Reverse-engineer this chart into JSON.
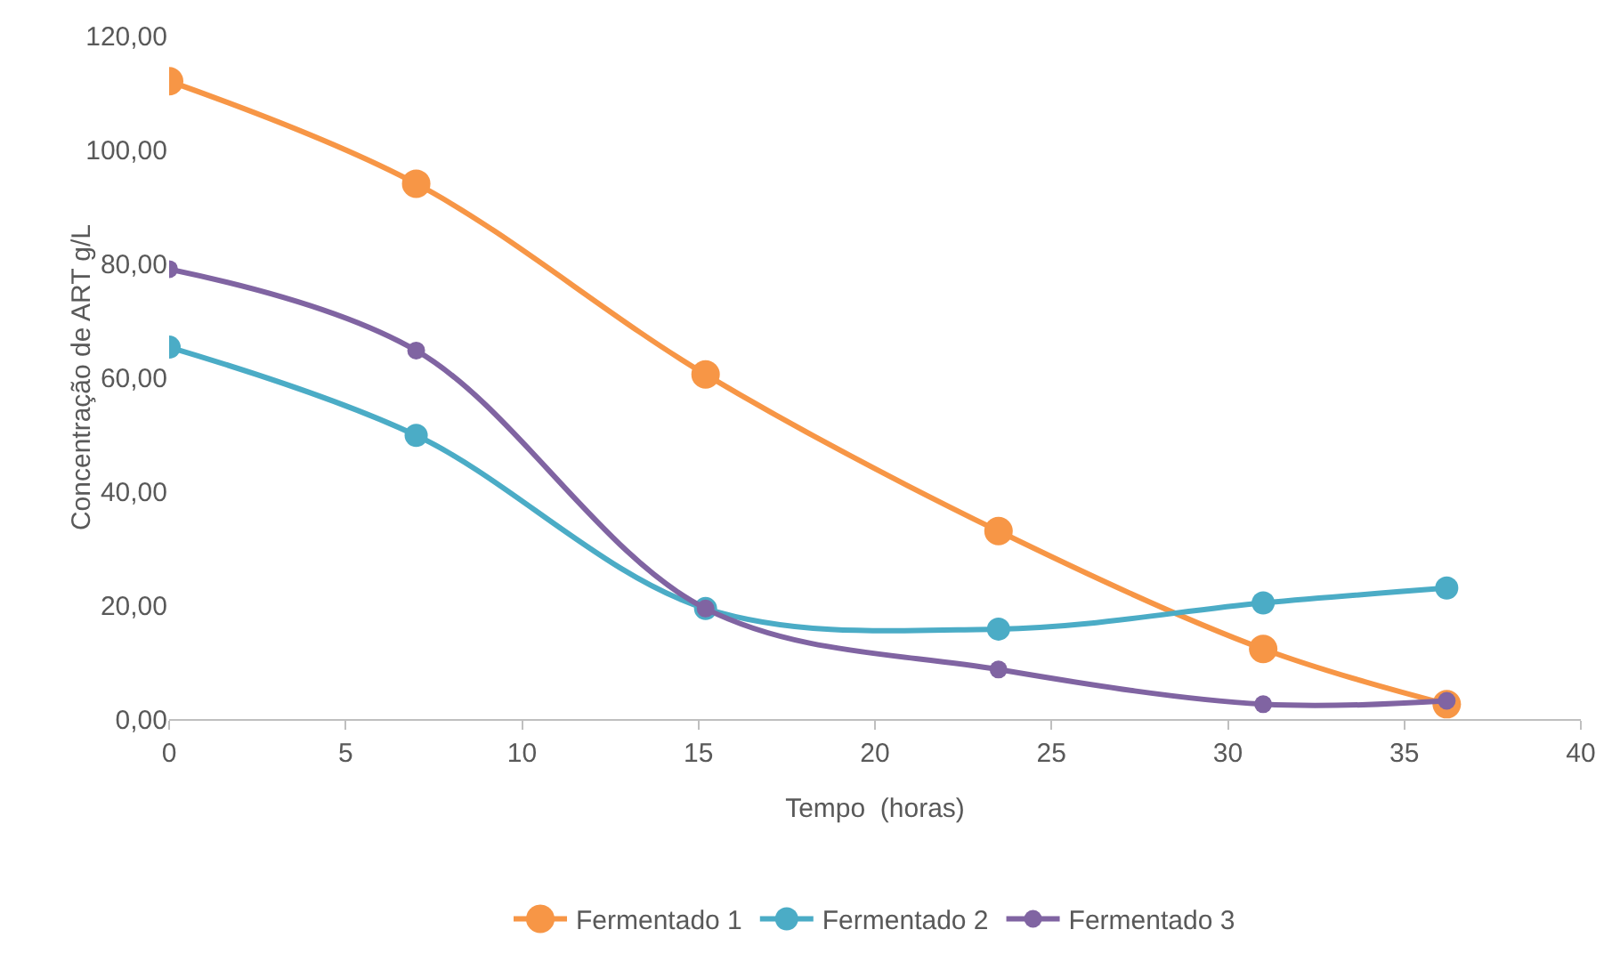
{
  "chart_data": {
    "type": "line",
    "xlabel": "Tempo  (horas)",
    "ylabel": "Concentração de ART g/L",
    "x": [
      0,
      7,
      15.2,
      23.5,
      31,
      36.2
    ],
    "series": [
      {
        "name": "Fermentado 1",
        "color": "#f79646",
        "values": [
          112,
          94,
          60.5,
          33,
          12.3,
          2.6
        ]
      },
      {
        "name": "Fermentado 2",
        "color": "#4bacc6",
        "values": [
          65.3,
          49.8,
          19.4,
          15.8,
          20.4,
          23
        ]
      },
      {
        "name": "Fermentado 3",
        "color": "#8064a2",
        "values": [
          79,
          64.7,
          19.4,
          8.7,
          2.6,
          3.2
        ]
      }
    ],
    "xlim": [
      0,
      40
    ],
    "xticks": [
      0,
      5,
      10,
      15,
      20,
      25,
      30,
      35,
      40
    ],
    "ylim": [
      0,
      120
    ],
    "yticks": [
      {
        "value": 0,
        "label": "0,00"
      },
      {
        "value": 20,
        "label": "20,00"
      },
      {
        "value": 40,
        "label": "40,00"
      },
      {
        "value": 60,
        "label": "60,00"
      },
      {
        "value": 80,
        "label": "80,00"
      },
      {
        "value": 100,
        "label": "100,00"
      },
      {
        "value": 120,
        "label": "120,00"
      }
    ],
    "grid": false,
    "legend": "bottom",
    "marker": "circle",
    "line_style": "solid"
  }
}
